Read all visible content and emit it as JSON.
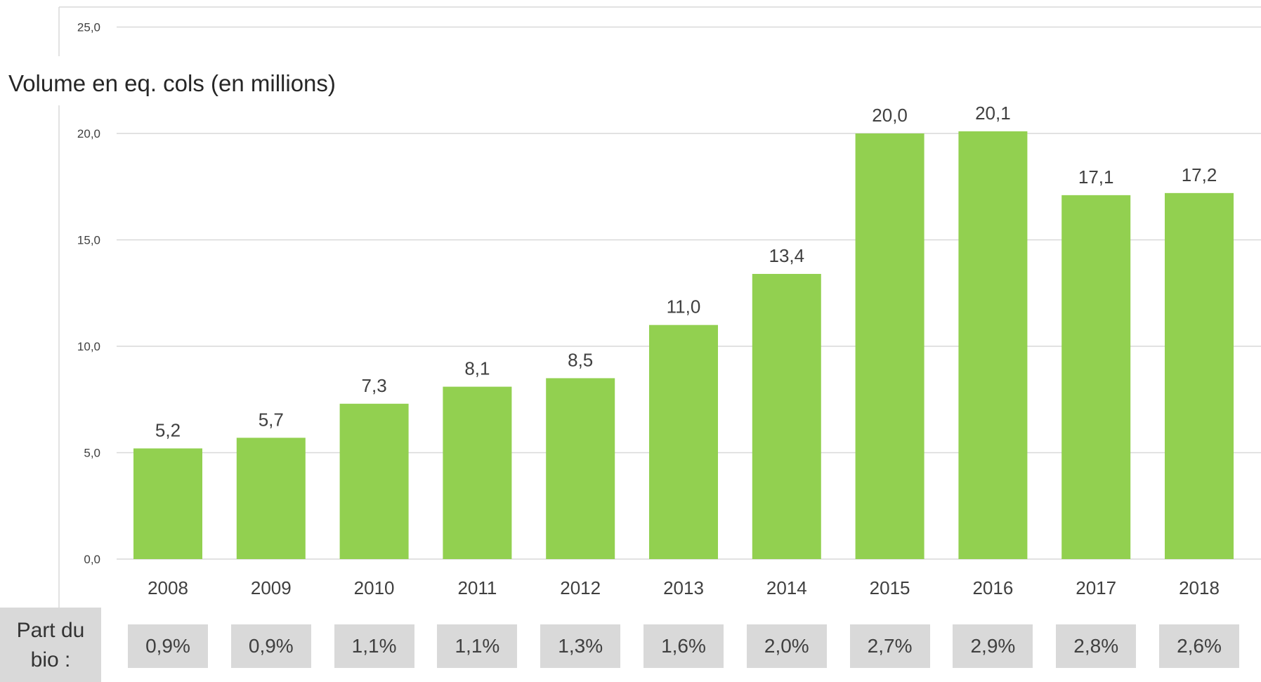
{
  "chart_data": {
    "type": "bar",
    "ylabel": "Volume en eq. cols (en millions)",
    "categories": [
      "2008",
      "2009",
      "2010",
      "2011",
      "2012",
      "2013",
      "2014",
      "2015",
      "2016",
      "2017",
      "2018"
    ],
    "values": [
      5.2,
      5.7,
      7.3,
      8.1,
      8.5,
      11.0,
      13.4,
      20.0,
      20.1,
      17.1,
      17.2
    ],
    "value_labels": [
      "5,2",
      "5,7",
      "7,3",
      "8,1",
      "8,5",
      "11,0",
      "13,4",
      "20,0",
      "20,1",
      "17,1",
      "17,2"
    ],
    "ylim": [
      0,
      25
    ],
    "yticks": [
      0,
      5,
      10,
      15,
      20,
      25
    ],
    "ytick_labels": [
      "0,0",
      "5,0",
      "10,0",
      "15,0",
      "20,0",
      "25,0"
    ],
    "grid": true,
    "bar_color": "#92d050",
    "grid_color": "#d9d9d9"
  },
  "organic_share": {
    "label": "Part du bio :",
    "values": [
      "0,9%",
      "0,9%",
      "1,1%",
      "1,1%",
      "1,3%",
      "1,6%",
      "2,0%",
      "2,7%",
      "2,9%",
      "2,8%",
      "2,6%"
    ]
  }
}
